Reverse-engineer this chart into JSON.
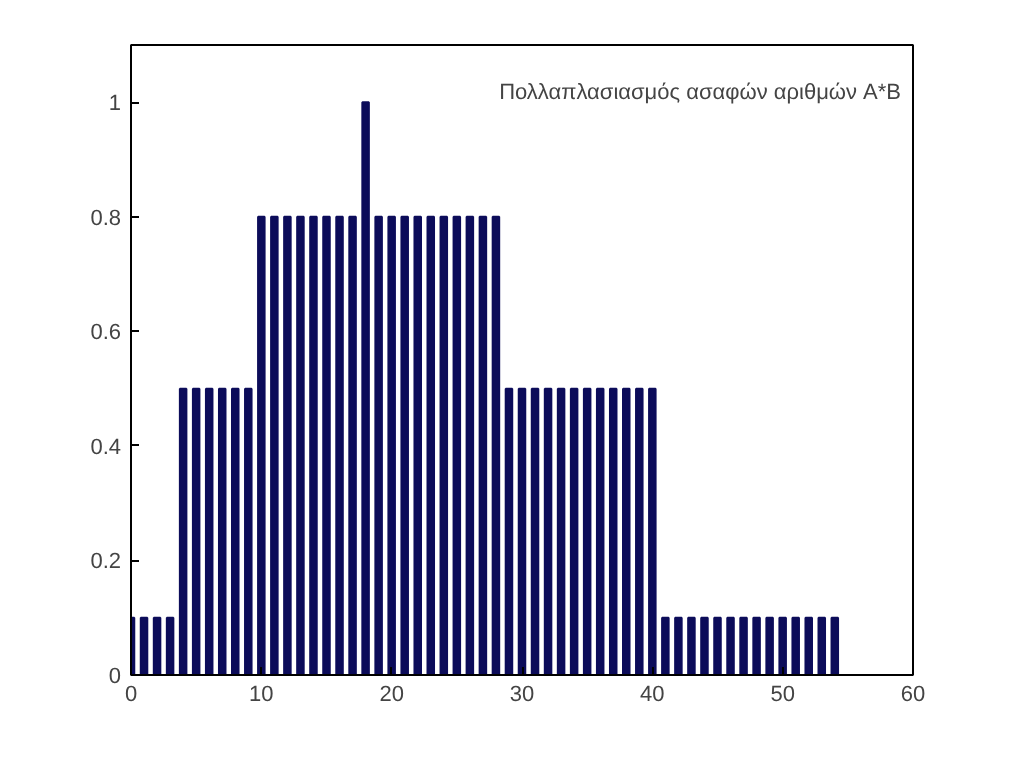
{
  "chart_data": {
    "type": "bar",
    "x": [
      0,
      1,
      2,
      3,
      4,
      5,
      6,
      7,
      8,
      9,
      10,
      11,
      12,
      13,
      14,
      15,
      16,
      17,
      18,
      19,
      20,
      21,
      22,
      23,
      24,
      25,
      26,
      27,
      28,
      29,
      30,
      31,
      32,
      33,
      34,
      35,
      36,
      37,
      38,
      39,
      40,
      41,
      42,
      43,
      44,
      45,
      46,
      47,
      48,
      49,
      50,
      51,
      52,
      53,
      54
    ],
    "values": [
      0.1,
      0.1,
      0.1,
      0.1,
      0.5,
      0.5,
      0.5,
      0.5,
      0.5,
      0.5,
      0.8,
      0.8,
      0.8,
      0.8,
      0.8,
      0.8,
      0.8,
      0.8,
      1,
      0.8,
      0.8,
      0.8,
      0.8,
      0.8,
      0.8,
      0.8,
      0.8,
      0.8,
      0.8,
      0.5,
      0.5,
      0.5,
      0.5,
      0.5,
      0.5,
      0.5,
      0.5,
      0.5,
      0.5,
      0.5,
      0.5,
      0.1,
      0.1,
      0.1,
      0.1,
      0.1,
      0.1,
      0.1,
      0.1,
      0.1,
      0.1,
      0.1,
      0.1,
      0.1,
      0.1
    ],
    "color": "#0c0c5a",
    "annotations": [
      "Πολλαπλασιασμός ασαφών αριθμών A*B"
    ],
    "xlim": [
      0,
      60
    ],
    "xticks": [
      0,
      10,
      20,
      30,
      40,
      50,
      60
    ],
    "ylim": [
      0,
      1.1
    ],
    "yticks": [
      0,
      0.2,
      0.4,
      0.6,
      0.8,
      1
    ],
    "grid": false
  }
}
